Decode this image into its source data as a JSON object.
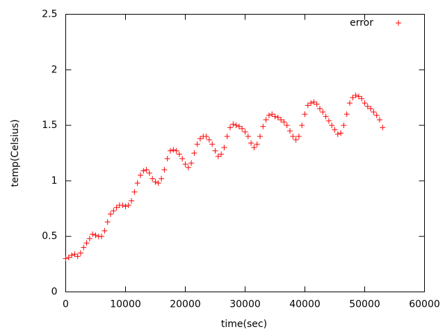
{
  "chart_data": {
    "type": "scatter",
    "x_label": "time(sec)",
    "y_label": "temp(Celsius)",
    "x": [
      0,
      500,
      1000,
      1500,
      2000,
      2500,
      3000,
      3500,
      4000,
      4500,
      5000,
      5500,
      6000,
      6500,
      7000,
      7500,
      8000,
      8500,
      9000,
      9500,
      10000,
      10500,
      11000,
      11500,
      12000,
      12500,
      13000,
      13500,
      14000,
      14500,
      15000,
      15500,
      16000,
      16500,
      17000,
      17500,
      18000,
      18500,
      19000,
      19500,
      20000,
      20500,
      21000,
      21500,
      22000,
      22500,
      23000,
      23500,
      24000,
      24500,
      25000,
      25500,
      26000,
      26500,
      27000,
      27500,
      28000,
      28500,
      29000,
      29500,
      30000,
      30500,
      31000,
      31500,
      32000,
      32500,
      33000,
      33500,
      34000,
      34500,
      35000,
      35500,
      36000,
      36500,
      37000,
      37500,
      38000,
      38500,
      39000,
      39500,
      40000,
      40500,
      41000,
      41500,
      42000,
      42500,
      43000,
      43500,
      44000,
      44500,
      45000,
      45500,
      46000,
      46500,
      47000,
      47500,
      48000,
      48500,
      49000,
      49500,
      50000,
      50500,
      51000,
      51500,
      52000,
      52500,
      53000
    ],
    "series": [
      {
        "name": "error",
        "color": "#ff0000",
        "values": [
          0.3,
          0.31,
          0.33,
          0.34,
          0.32,
          0.35,
          0.4,
          0.44,
          0.48,
          0.52,
          0.51,
          0.5,
          0.5,
          0.55,
          0.63,
          0.7,
          0.73,
          0.76,
          0.78,
          0.78,
          0.77,
          0.78,
          0.82,
          0.9,
          0.98,
          1.05,
          1.09,
          1.1,
          1.07,
          1.02,
          0.99,
          0.98,
          1.02,
          1.1,
          1.2,
          1.27,
          1.28,
          1.27,
          1.24,
          1.2,
          1.15,
          1.12,
          1.16,
          1.25,
          1.33,
          1.38,
          1.4,
          1.4,
          1.37,
          1.33,
          1.27,
          1.22,
          1.24,
          1.3,
          1.4,
          1.48,
          1.51,
          1.5,
          1.49,
          1.47,
          1.44,
          1.4,
          1.34,
          1.3,
          1.33,
          1.4,
          1.49,
          1.55,
          1.59,
          1.6,
          1.58,
          1.57,
          1.55,
          1.53,
          1.5,
          1.45,
          1.4,
          1.37,
          1.4,
          1.5,
          1.6,
          1.68,
          1.7,
          1.71,
          1.69,
          1.65,
          1.62,
          1.58,
          1.54,
          1.5,
          1.46,
          1.42,
          1.43,
          1.5,
          1.6,
          1.7,
          1.75,
          1.77,
          1.76,
          1.74,
          1.7,
          1.67,
          1.65,
          1.62,
          1.59,
          1.55,
          1.48
        ]
      }
    ],
    "xlim": [
      0,
      60000
    ],
    "ylim": [
      0,
      2.5
    ],
    "xticks": [
      0,
      10000,
      20000,
      30000,
      40000,
      50000,
      60000
    ],
    "yticks": [
      0,
      0.5,
      1,
      1.5,
      2,
      2.5
    ],
    "legend": "upper right"
  }
}
